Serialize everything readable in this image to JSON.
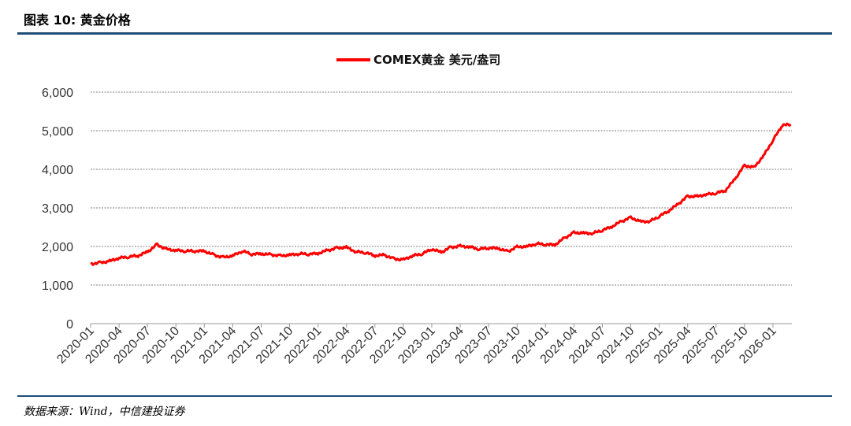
{
  "header": {
    "title": "图表 10:  黄金价格"
  },
  "footer": {
    "source": "数据来源：Wind，中信建投证券"
  },
  "colors": {
    "series": "#ff0000",
    "rule": "#1f4e79",
    "grid": "#555555"
  },
  "chart_data": {
    "type": "line",
    "title": "",
    "xlabel": "",
    "ylabel": "",
    "ylim": [
      0,
      6000
    ],
    "yticks": [
      "0",
      "1,000",
      "2,000",
      "3,000",
      "4,000",
      "5,000",
      "6,000"
    ],
    "xticks": [
      "2020-01",
      "2020-04",
      "2020-07",
      "2020-10",
      "2021-01",
      "2021-04",
      "2021-07",
      "2021-10",
      "2022-01",
      "2022-04",
      "2022-07",
      "2022-10",
      "2023-01",
      "2023-04",
      "2023-07",
      "2023-10",
      "2024-01",
      "2024-04",
      "2024-07",
      "2024-10",
      "2025-01",
      "2025-04",
      "2025-07",
      "2025-10",
      "2026-01"
    ],
    "grid": "horizontal dashed",
    "legend_position": "top-center",
    "series": [
      {
        "name": "COMEX黄金 美元/盎司",
        "x": [
          "2020-01",
          "2020-02",
          "2020-03",
          "2020-04",
          "2020-05",
          "2020-06",
          "2020-07",
          "2020-08",
          "2020-09",
          "2020-10",
          "2020-11",
          "2020-12",
          "2021-01",
          "2021-02",
          "2021-03",
          "2021-04",
          "2021-05",
          "2021-06",
          "2021-07",
          "2021-08",
          "2021-09",
          "2021-10",
          "2021-11",
          "2021-12",
          "2022-01",
          "2022-02",
          "2022-03",
          "2022-04",
          "2022-05",
          "2022-06",
          "2022-07",
          "2022-08",
          "2022-09",
          "2022-10",
          "2022-11",
          "2022-12",
          "2023-01",
          "2023-02",
          "2023-03",
          "2023-04",
          "2023-05",
          "2023-06",
          "2023-07",
          "2023-08",
          "2023-09",
          "2023-10",
          "2023-11",
          "2023-12",
          "2024-01",
          "2024-02",
          "2024-03",
          "2024-04",
          "2024-05",
          "2024-06",
          "2024-07",
          "2024-08",
          "2024-09",
          "2024-10",
          "2024-11",
          "2024-12",
          "2025-01",
          "2025-02",
          "2025-03",
          "2025-04",
          "2025-05",
          "2025-06",
          "2025-07",
          "2025-08",
          "2025-09",
          "2025-10",
          "2025-11",
          "2025-12",
          "2026-01",
          "2026-02"
        ],
        "values": [
          1550,
          1580,
          1620,
          1700,
          1730,
          1760,
          1860,
          2050,
          1930,
          1900,
          1880,
          1880,
          1880,
          1780,
          1720,
          1760,
          1880,
          1800,
          1810,
          1790,
          1760,
          1780,
          1810,
          1800,
          1820,
          1900,
          1960,
          1980,
          1860,
          1840,
          1760,
          1780,
          1680,
          1660,
          1760,
          1810,
          1930,
          1850,
          1980,
          2010,
          1990,
          1930,
          1960,
          1950,
          1870,
          1990,
          2000,
          2070,
          2050,
          2040,
          2220,
          2360,
          2350,
          2340,
          2420,
          2510,
          2650,
          2750,
          2650,
          2650,
          2780,
          2920,
          3100,
          3300,
          3300,
          3350,
          3380,
          3450,
          3750,
          4100,
          4050,
          4350,
          4750,
          5150
        ]
      }
    ]
  }
}
